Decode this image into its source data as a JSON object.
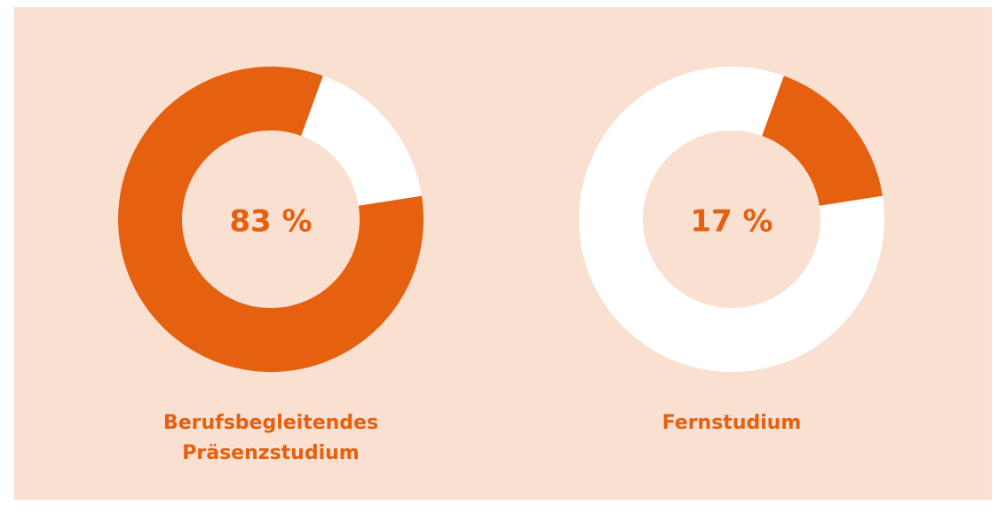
{
  "chart_data": [
    {
      "type": "pie",
      "categories": [
        "Berufsbegleitendes Präsenzstudium"
      ],
      "values": [
        83
      ],
      "value_labels": [
        "83 %"
      ],
      "color": "#e5600f",
      "track_color": "#ffffff"
    },
    {
      "type": "pie",
      "categories": [
        "Fernstudium"
      ],
      "values": [
        17
      ],
      "value_labels": [
        "17 %"
      ],
      "color": "#e5600f",
      "track_color": "#ffffff"
    }
  ]
}
